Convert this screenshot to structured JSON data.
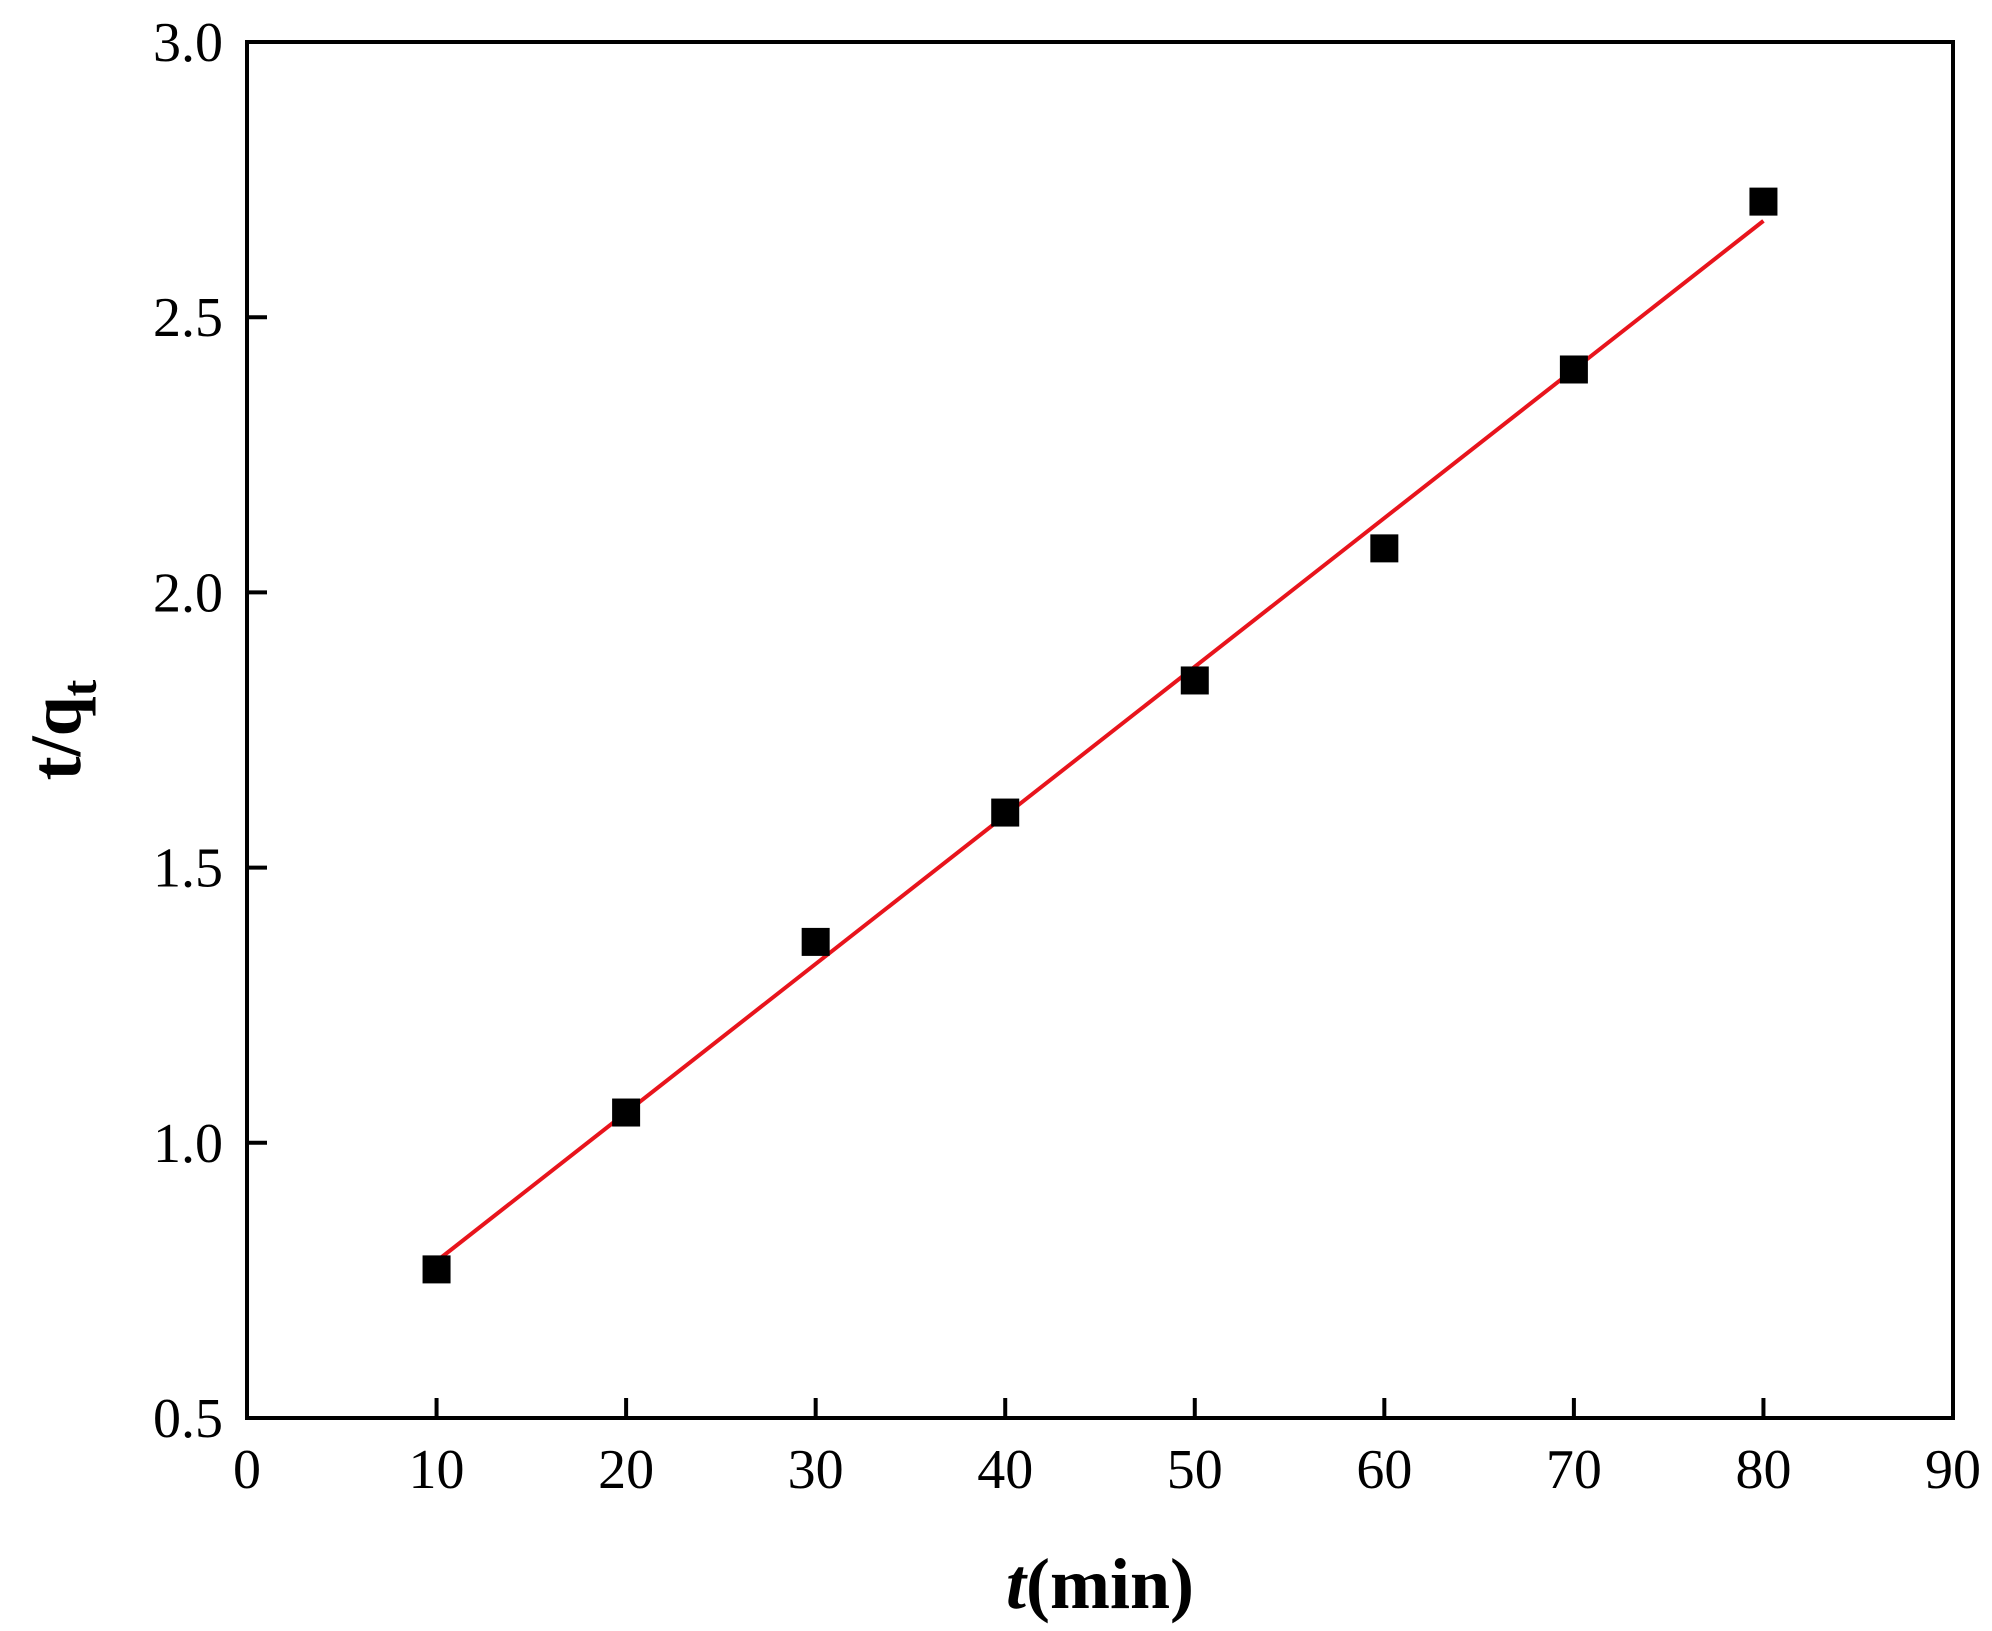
{
  "chart_data": {
    "type": "scatter",
    "title": "",
    "xlabel": {
      "italic": "t",
      "rest": "(min)"
    },
    "ylabel": {
      "base": "t/q",
      "sub": "t"
    },
    "xlim": [
      0,
      90
    ],
    "ylim": [
      0.5,
      3.0
    ],
    "xticks": [
      0,
      10,
      20,
      30,
      40,
      50,
      60,
      70,
      80,
      90
    ],
    "yticks": [
      0.5,
      1.0,
      1.5,
      2.0,
      2.5,
      3.0
    ],
    "xtick_labels": [
      "0",
      "10",
      "20",
      "30",
      "40",
      "50",
      "60",
      "70",
      "80",
      "90"
    ],
    "ytick_labels": [
      "0.5",
      "1.0",
      "1.5",
      "2.0",
      "2.5",
      "3.0"
    ],
    "grid": false,
    "series": [
      {
        "x": [
          10,
          20,
          30,
          40,
          50,
          60,
          70,
          80
        ],
        "y": [
          0.77,
          1.055,
          1.365,
          1.6,
          1.84,
          2.08,
          2.405,
          2.71
        ],
        "marker": "square",
        "color": "#000000"
      }
    ],
    "fit_line": {
      "x": [
        10,
        80
      ],
      "y": [
        0.785,
        2.675
      ],
      "color": "#e8141c"
    }
  }
}
